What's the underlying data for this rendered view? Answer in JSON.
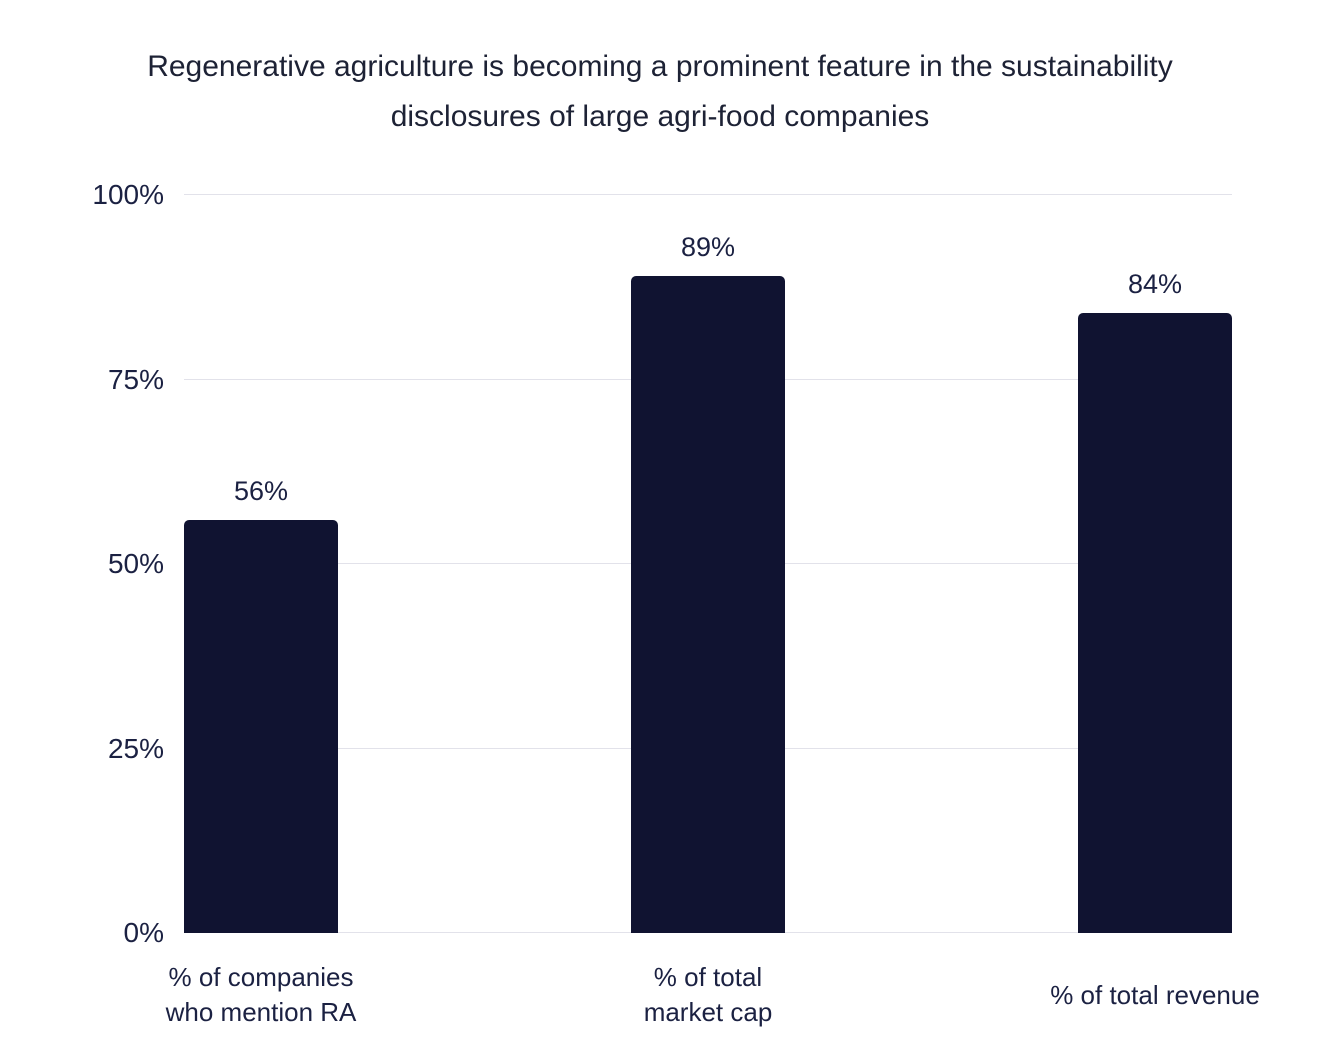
{
  "chart_data": {
    "type": "bar",
    "title": "Regenerative agriculture is becoming a prominent feature in the sustainability disclosures of large agri-food companies",
    "title_lines": [
      "Regenerative agriculture is becoming a prominent feature in the sustainability",
      "disclosures of large agri-food companies"
    ],
    "categories": [
      "% of companies who mention RA",
      "% of total market cap",
      "% of total revenue"
    ],
    "category_lines": [
      [
        "% of companies",
        "who mention RA"
      ],
      [
        "% of total",
        "market cap"
      ],
      [
        "% of total revenue"
      ]
    ],
    "values": [
      56,
      89,
      84
    ],
    "value_labels": [
      "56%",
      "89%",
      "84%"
    ],
    "xlabel": "",
    "ylabel": "",
    "ylim": [
      0,
      100
    ],
    "yticks": [
      {
        "value": 0,
        "label": "0%"
      },
      {
        "value": 25,
        "label": "25%"
      },
      {
        "value": 50,
        "label": "50%"
      },
      {
        "value": 75,
        "label": "75%"
      },
      {
        "value": 100,
        "label": "100%"
      }
    ],
    "grid": "horizontal",
    "legend": "none",
    "colors": {
      "bar": "#101331",
      "text": "#1b2142",
      "title": "#1d2235",
      "gridline": "#e2e2ea",
      "background": "#ffffff"
    }
  }
}
